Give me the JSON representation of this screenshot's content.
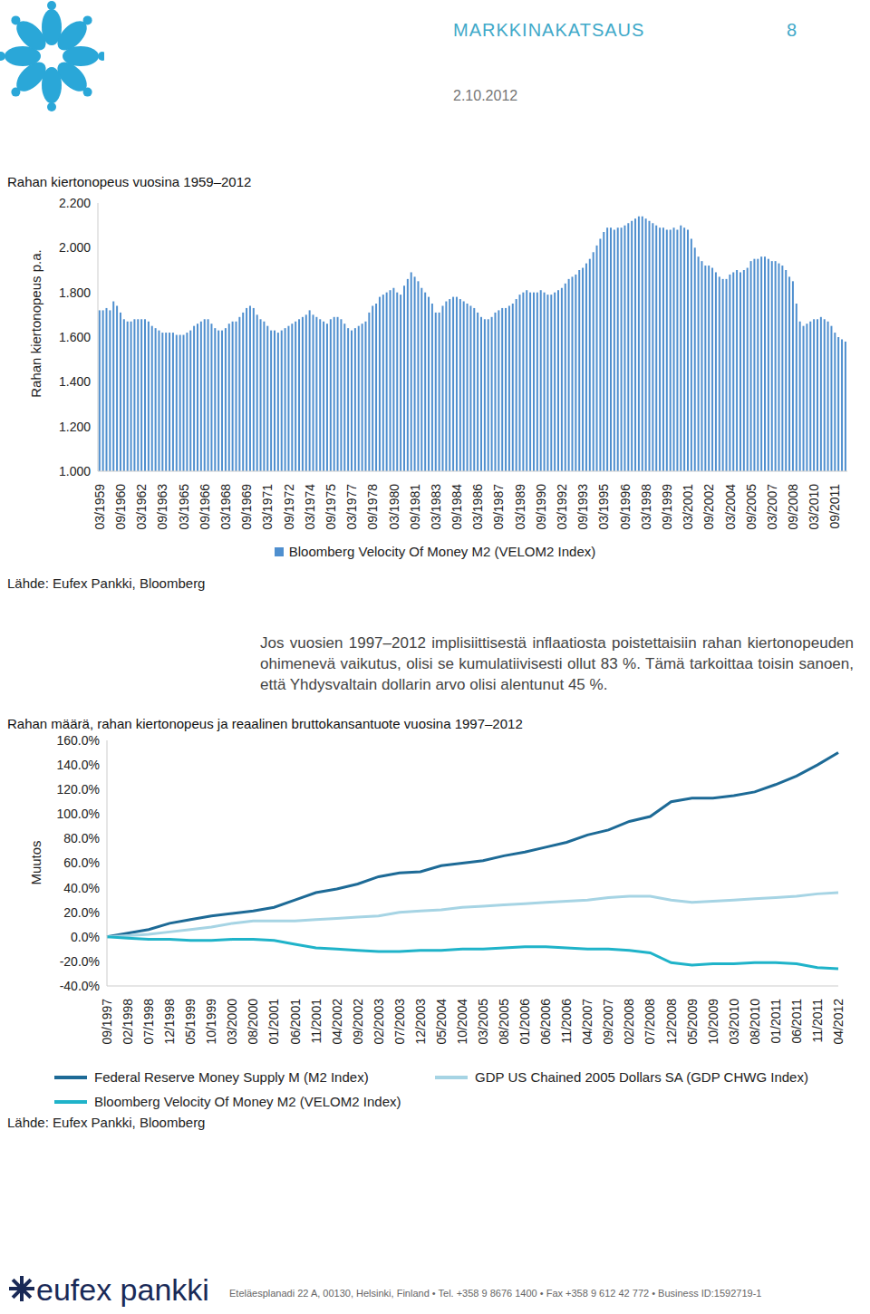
{
  "header": {
    "title": "MARKKINAKATSAUS",
    "page": 8,
    "date": "2.10.2012"
  },
  "chart_data": [
    {
      "type": "bar",
      "title": "Rahan kiertonopeus vuosina 1959–2012",
      "y_label": "Rahan kiertonopeus p.a.",
      "categories": [
        "03/1959",
        null,
        null,
        null,
        null,
        null,
        "09/1960",
        null,
        null,
        null,
        null,
        null,
        "03/1962",
        null,
        null,
        null,
        null,
        null,
        "09/1963",
        null,
        null,
        null,
        null,
        null,
        "03/1965",
        null,
        null,
        null,
        null,
        null,
        "09/1966",
        null,
        null,
        null,
        null,
        null,
        "03/1968",
        null,
        null,
        null,
        null,
        null,
        "09/1969",
        null,
        null,
        null,
        null,
        null,
        "03/1971",
        null,
        null,
        null,
        null,
        null,
        "09/1972",
        null,
        null,
        null,
        null,
        null,
        "03/1974",
        null,
        null,
        null,
        null,
        null,
        "09/1975",
        null,
        null,
        null,
        null,
        null,
        "03/1977",
        null,
        null,
        null,
        null,
        null,
        "09/1978",
        null,
        null,
        null,
        null,
        null,
        "03/1980",
        null,
        null,
        null,
        null,
        null,
        "09/1981",
        null,
        null,
        null,
        null,
        null,
        "03/1983",
        null,
        null,
        null,
        null,
        null,
        "09/1984",
        null,
        null,
        null,
        null,
        null,
        "03/1986",
        null,
        null,
        null,
        null,
        null,
        "09/1987",
        null,
        null,
        null,
        null,
        null,
        "03/1989",
        null,
        null,
        null,
        null,
        null,
        "09/1990",
        null,
        null,
        null,
        null,
        null,
        "03/1992",
        null,
        null,
        null,
        null,
        null,
        "09/1993",
        null,
        null,
        null,
        null,
        null,
        "03/1995",
        null,
        null,
        null,
        null,
        null,
        "09/1996",
        null,
        null,
        null,
        null,
        null,
        "03/1998",
        null,
        null,
        null,
        null,
        null,
        "09/1999",
        null,
        null,
        null,
        null,
        null,
        "03/2001",
        null,
        null,
        null,
        null,
        null,
        "09/2002",
        null,
        null,
        null,
        null,
        null,
        "03/2004",
        null,
        null,
        null,
        null,
        null,
        "09/2005",
        null,
        null,
        null,
        null,
        null,
        "03/2007",
        null,
        null,
        null,
        null,
        null,
        "09/2008",
        null,
        null,
        null,
        null,
        null,
        "03/2010",
        null,
        null,
        null,
        null,
        null,
        "09/2011",
        null,
        null,
        null
      ],
      "series": [
        {
          "name": "Bloomberg Velocity Of Money M2 (VELOM2 Index)",
          "color": "#4f8fcf",
          "values": [
            1.72,
            1.72,
            1.73,
            1.72,
            1.76,
            1.74,
            1.71,
            1.68,
            1.67,
            1.67,
            1.68,
            1.68,
            1.68,
            1.68,
            1.67,
            1.65,
            1.64,
            1.63,
            1.62,
            1.62,
            1.62,
            1.62,
            1.61,
            1.61,
            1.61,
            1.62,
            1.63,
            1.65,
            1.66,
            1.67,
            1.68,
            1.68,
            1.66,
            1.64,
            1.63,
            1.63,
            1.64,
            1.66,
            1.67,
            1.67,
            1.69,
            1.71,
            1.73,
            1.74,
            1.73,
            1.7,
            1.68,
            1.67,
            1.65,
            1.63,
            1.63,
            1.62,
            1.63,
            1.64,
            1.65,
            1.66,
            1.67,
            1.68,
            1.69,
            1.7,
            1.72,
            1.7,
            1.69,
            1.68,
            1.67,
            1.66,
            1.68,
            1.69,
            1.69,
            1.68,
            1.66,
            1.64,
            1.63,
            1.64,
            1.65,
            1.66,
            1.67,
            1.71,
            1.74,
            1.75,
            1.78,
            1.79,
            1.8,
            1.81,
            1.82,
            1.8,
            1.79,
            1.83,
            1.86,
            1.89,
            1.87,
            1.85,
            1.82,
            1.8,
            1.78,
            1.75,
            1.71,
            1.71,
            1.74,
            1.76,
            1.77,
            1.78,
            1.78,
            1.77,
            1.76,
            1.75,
            1.74,
            1.73,
            1.71,
            1.69,
            1.68,
            1.68,
            1.69,
            1.71,
            1.72,
            1.73,
            1.73,
            1.74,
            1.75,
            1.77,
            1.79,
            1.8,
            1.81,
            1.8,
            1.8,
            1.8,
            1.81,
            1.8,
            1.79,
            1.79,
            1.8,
            1.81,
            1.82,
            1.84,
            1.86,
            1.87,
            1.88,
            1.9,
            1.91,
            1.93,
            1.95,
            1.98,
            2.01,
            2.04,
            2.07,
            2.09,
            2.09,
            2.08,
            2.09,
            2.09,
            2.1,
            2.11,
            2.12,
            2.13,
            2.14,
            2.14,
            2.13,
            2.12,
            2.11,
            2.1,
            2.09,
            2.09,
            2.08,
            2.08,
            2.09,
            2.08,
            2.1,
            2.09,
            2.08,
            2.04,
            2.0,
            1.96,
            1.94,
            1.92,
            1.92,
            1.91,
            1.89,
            1.87,
            1.86,
            1.86,
            1.88,
            1.89,
            1.9,
            1.89,
            1.9,
            1.91,
            1.94,
            1.95,
            1.95,
            1.96,
            1.96,
            1.95,
            1.94,
            1.94,
            1.93,
            1.92,
            1.9,
            1.87,
            1.85,
            1.75,
            1.67,
            1.65,
            1.66,
            1.67,
            1.68,
            1.68,
            1.69,
            1.68,
            1.67,
            1.65,
            1.62,
            1.6,
            1.59,
            1.58
          ]
        }
      ],
      "ylim": [
        1,
        2.2
      ],
      "yticks": [
        {
          "value": 1,
          "label": "1.000"
        },
        {
          "value": 1.2,
          "label": "1.200"
        },
        {
          "value": 1.4,
          "label": "1.400"
        },
        {
          "value": 1.6,
          "label": "1.600"
        },
        {
          "value": 1.8,
          "label": "1.800"
        },
        {
          "value": 2,
          "label": "2.000"
        },
        {
          "value": 2.2,
          "label": "2.200"
        }
      ],
      "grid": false,
      "legend": "bottom",
      "source": "Lähde: Eufex Pankki, Bloomberg"
    },
    {
      "type": "line",
      "title": "Rahan määrä, rahan kiertonopeus ja reaalinen bruttokansantuote vuosina 1997–2012",
      "y_label": "Muutos",
      "categories": [
        "09/1997",
        "02/1998",
        "07/1998",
        "12/1998",
        "05/1999",
        "10/1999",
        "03/2000",
        "08/2000",
        "01/2001",
        "06/2001",
        "11/2001",
        "04/2002",
        "09/2002",
        "02/2003",
        "07/2003",
        "12/2003",
        "05/2004",
        "10/2004",
        "03/2005",
        "08/2005",
        "01/2006",
        "06/2006",
        "11/2006",
        "04/2007",
        "09/2007",
        "02/2008",
        "07/2008",
        "12/2008",
        "05/2009",
        "10/2009",
        "03/2010",
        "08/2010",
        "01/2011",
        "06/2011",
        "11/2011",
        "04/2012"
      ],
      "series": [
        {
          "name": "Federal Reserve Money Supply M (M2 Index)",
          "color": "#1d6a96",
          "values": [
            0,
            3,
            6,
            11,
            14,
            17,
            19,
            21,
            24,
            30,
            36,
            39,
            43,
            49,
            52,
            53,
            58,
            60,
            62,
            66,
            69,
            73,
            77,
            83,
            87,
            94,
            98,
            110,
            113,
            113,
            115,
            118,
            124,
            131,
            140,
            150
          ]
        },
        {
          "name": "GDP US Chained 2005 Dollars SA (GDP CHWG Index)",
          "color": "#a6d4e4",
          "values": [
            0,
            1,
            2,
            4,
            6,
            8,
            11,
            13,
            13,
            13,
            14,
            15,
            16,
            17,
            20,
            21,
            22,
            24,
            25,
            26,
            27,
            28,
            29,
            30,
            32,
            33,
            33,
            30,
            28,
            29,
            30,
            31,
            32,
            33,
            35,
            36
          ]
        },
        {
          "name": "Bloomberg Velocity Of Money M2 (VELOM2 Index)",
          "color": "#1fb3c9",
          "values": [
            0,
            -1,
            -2,
            -2,
            -3,
            -3,
            -2,
            -2,
            -3,
            -6,
            -9,
            -10,
            -11,
            -12,
            -12,
            -11,
            -11,
            -10,
            -10,
            -9,
            -8,
            -8,
            -9,
            -10,
            -10,
            -11,
            -13,
            -21,
            -23,
            -22,
            -22,
            -21,
            -21,
            -22,
            -25,
            -26
          ]
        }
      ],
      "ylim": [
        -40,
        160
      ],
      "yticks": [
        {
          "value": -40,
          "label": "-40.0%"
        },
        {
          "value": -20,
          "label": "-20.0%"
        },
        {
          "value": 0,
          "label": "0.0%"
        },
        {
          "value": 20,
          "label": "20.0%"
        },
        {
          "value": 40,
          "label": "40.0%"
        },
        {
          "value": 60,
          "label": "60.0%"
        },
        {
          "value": 80,
          "label": "80.0%"
        },
        {
          "value": 100,
          "label": "100.0%"
        },
        {
          "value": 120,
          "label": "120.0%"
        },
        {
          "value": 140,
          "label": "140.0%"
        },
        {
          "value": 160,
          "label": "160.0%"
        }
      ],
      "grid": false,
      "legend": "bottom",
      "source": "Lähde: Eufex Pankki, Bloomberg"
    }
  ],
  "text": "Jos vuosien 1997–2012 implisiittisestä inflaatiosta poistettaisiin rahan kiertonopeuden ohimenevä vaikutus, olisi se kumulatiivisesti ollut 83 %. Tämä tarkoittaa toisin sanoen, että Yhdysvaltain dollarin arvo olisi alentunut 45 %.",
  "footer": {
    "logo": "eufex pankki",
    "address": "Eteläesplanadi 22 A, 00130, Helsinki, Finland • Tel. +358 9 8676 1400 • Fax +358 9 612 42 772 • Business ID:1592719-1"
  }
}
